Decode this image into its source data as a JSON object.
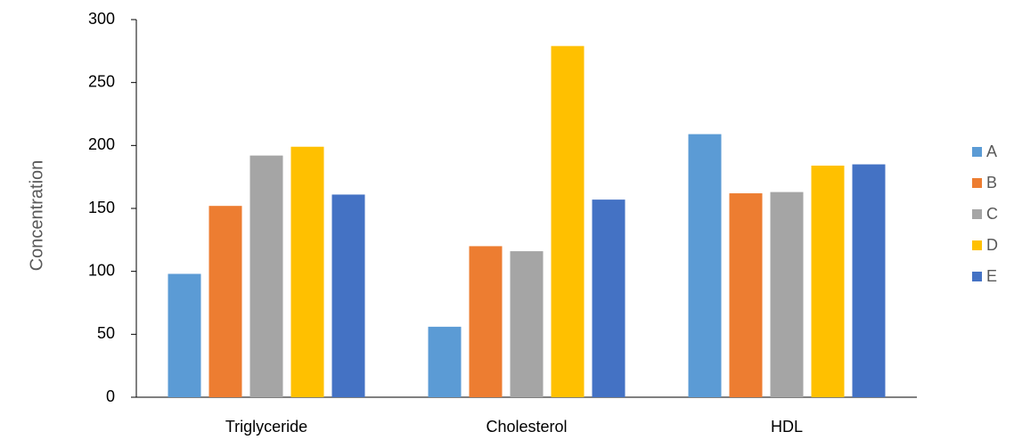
{
  "chart_data": {
    "type": "bar",
    "categories": [
      "Triglyceride",
      "Cholesterol",
      "HDL"
    ],
    "series": [
      {
        "name": "A",
        "values": [
          98,
          56,
          209
        ],
        "color": "#5B9BD5"
      },
      {
        "name": "B",
        "values": [
          152,
          120,
          162
        ],
        "color": "#ED7D31"
      },
      {
        "name": "C",
        "values": [
          192,
          116,
          163
        ],
        "color": "#A5A5A5"
      },
      {
        "name": "D",
        "values": [
          199,
          279,
          184
        ],
        "color": "#FFC000"
      },
      {
        "name": "E",
        "values": [
          161,
          157,
          185
        ],
        "color": "#4472C4"
      }
    ],
    "title": "",
    "xlabel": "",
    "ylabel": "Concentration",
    "ylim": [
      0,
      300
    ],
    "yticks": [
      0,
      50,
      100,
      150,
      200,
      250,
      300
    ],
    "grid": false,
    "legend_position": "right"
  }
}
